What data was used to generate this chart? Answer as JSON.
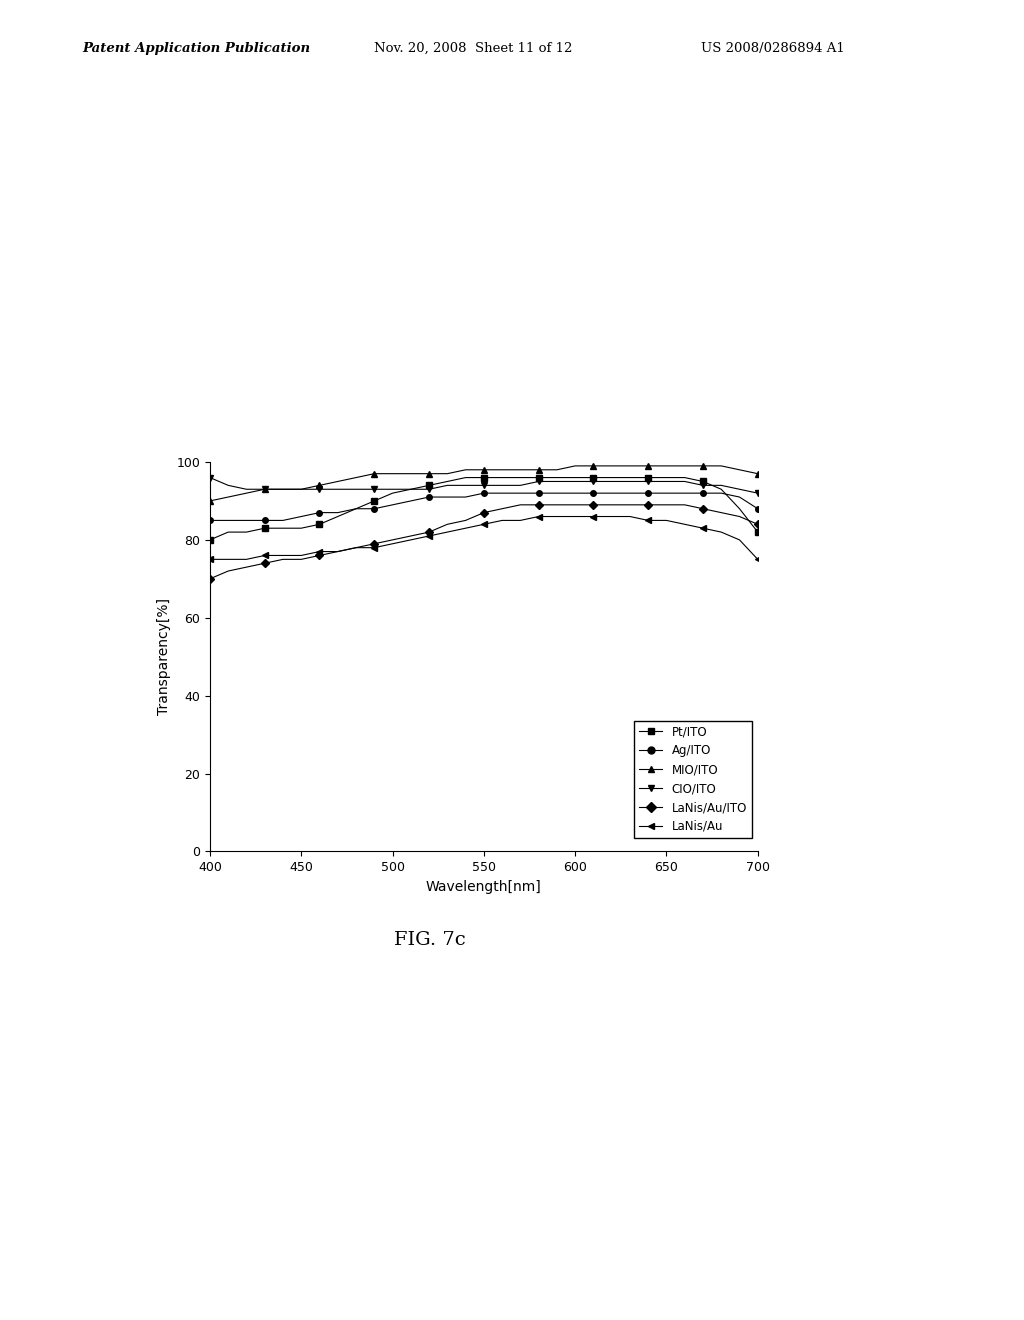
{
  "title": "",
  "xlabel": "Wavelength[nm]",
  "ylabel": "Transparency[%]",
  "xlim": [
    400,
    700
  ],
  "ylim": [
    0,
    100
  ],
  "xticks": [
    400,
    450,
    500,
    550,
    600,
    650,
    700
  ],
  "yticks": [
    0,
    20,
    40,
    60,
    80,
    100
  ],
  "wavelengths": [
    400,
    410,
    420,
    430,
    440,
    450,
    460,
    470,
    480,
    490,
    500,
    510,
    520,
    530,
    540,
    550,
    560,
    570,
    580,
    590,
    600,
    610,
    620,
    630,
    640,
    650,
    660,
    670,
    680,
    690,
    700
  ],
  "series": {
    "Pt/ITO": {
      "marker": "s",
      "values": [
        80,
        82,
        82,
        83,
        83,
        83,
        84,
        86,
        88,
        90,
        92,
        93,
        94,
        95,
        96,
        96,
        96,
        96,
        96,
        96,
        96,
        96,
        96,
        96,
        96,
        96,
        96,
        95,
        93,
        88,
        82
      ]
    },
    "Ag/ITO": {
      "marker": "o",
      "values": [
        85,
        85,
        85,
        85,
        85,
        86,
        87,
        87,
        88,
        88,
        89,
        90,
        91,
        91,
        91,
        92,
        92,
        92,
        92,
        92,
        92,
        92,
        92,
        92,
        92,
        92,
        92,
        92,
        92,
        91,
        88
      ]
    },
    "MIO/ITO": {
      "marker": "^",
      "values": [
        90,
        91,
        92,
        93,
        93,
        93,
        94,
        95,
        96,
        97,
        97,
        97,
        97,
        97,
        98,
        98,
        98,
        98,
        98,
        98,
        99,
        99,
        99,
        99,
        99,
        99,
        99,
        99,
        99,
        98,
        97
      ]
    },
    "CIO/ITO": {
      "marker": "v",
      "values": [
        96,
        94,
        93,
        93,
        93,
        93,
        93,
        93,
        93,
        93,
        93,
        93,
        93,
        94,
        94,
        94,
        94,
        94,
        95,
        95,
        95,
        95,
        95,
        95,
        95,
        95,
        95,
        94,
        94,
        93,
        92
      ]
    },
    "LaNi5/Au/ITO": {
      "marker": "D",
      "values": [
        70,
        72,
        73,
        74,
        75,
        75,
        76,
        77,
        78,
        79,
        80,
        81,
        82,
        84,
        85,
        87,
        88,
        89,
        89,
        89,
        89,
        89,
        89,
        89,
        89,
        89,
        89,
        88,
        87,
        86,
        84
      ]
    },
    "LaNi5/Au": {
      "marker": "<",
      "values": [
        75,
        75,
        75,
        76,
        76,
        76,
        77,
        77,
        78,
        78,
        79,
        80,
        81,
        82,
        83,
        84,
        85,
        85,
        86,
        86,
        86,
        86,
        86,
        86,
        85,
        85,
        84,
        83,
        82,
        80,
        75
      ]
    }
  },
  "line_color": "#000000",
  "background_color": "#ffffff",
  "fig_caption": "FIG. 7c",
  "header_left": "Patent Application Publication",
  "header_center": "Nov. 20, 2008  Sheet 11 of 12",
  "header_right": "US 2008/0286894 A1",
  "legend_labels": [
    "Pt/ITO",
    "Ag/ITO",
    "MIO/ITO",
    "CIO/ITO",
    "LaNis/Au/ITO",
    "LaNis/Au"
  ],
  "legend_markers": [
    "s",
    "o",
    "^",
    "v",
    "D",
    "<"
  ]
}
